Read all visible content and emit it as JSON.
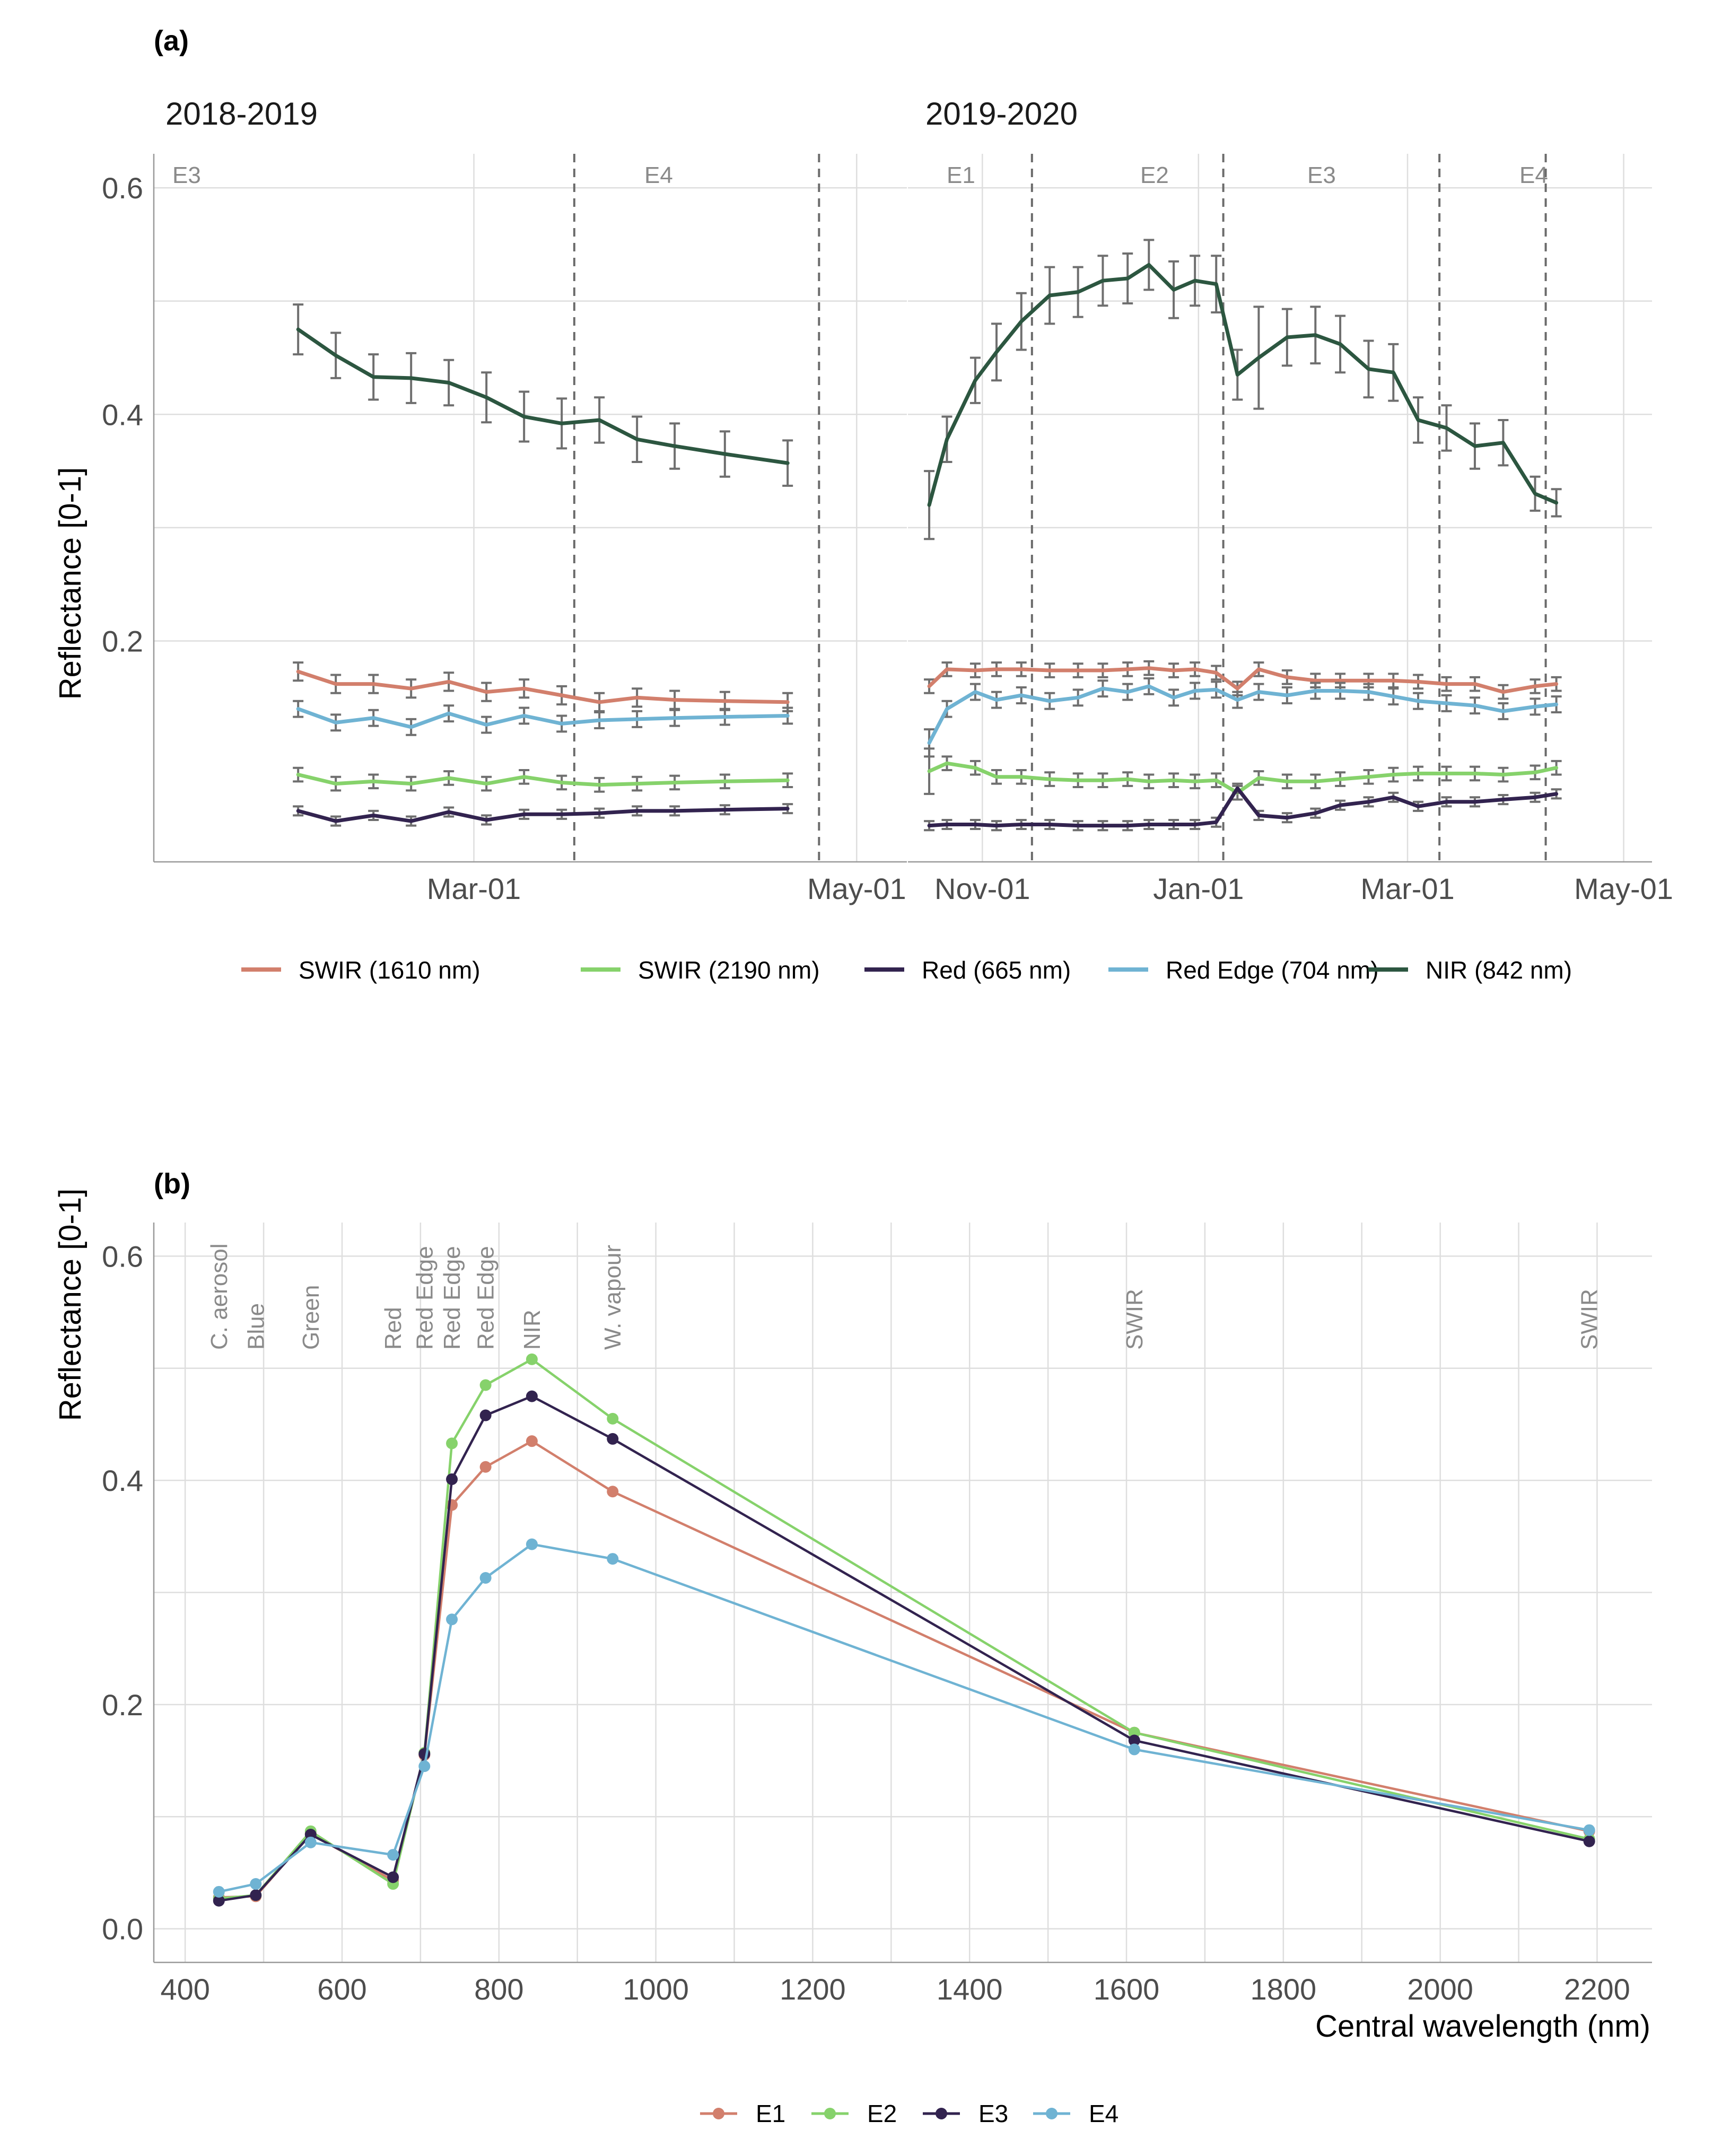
{
  "panel_a": {
    "title": "(a)",
    "ylabel": "Reflectance [0-1]",
    "yticks": [
      "0.2",
      "0.4",
      "0.6"
    ],
    "colors": {
      "swir1610": "#d27f6c",
      "swir2190": "#86d26b",
      "red": "#32234f",
      "rededge": "#6fb3d3",
      "nir": "#2c5640"
    },
    "legend": [
      "SWIR (1610 nm)",
      "SWIR (2190 nm)",
      "Red (665 nm)",
      "Red Edge (704 nm)",
      "NIR (842 nm)"
    ]
  },
  "panel_b": {
    "title": "(b)",
    "ylabel": "Reflectance [0-1]",
    "xlabel": "Central wavelength (nm)",
    "yticks": [
      "0.0",
      "0.2",
      "0.4",
      "0.6"
    ],
    "xticks": [
      "400",
      "600",
      "800",
      "1000",
      "1200",
      "1400",
      "1600",
      "1800",
      "2000",
      "2200"
    ],
    "legend": [
      "E1",
      "E2",
      "E3",
      "E4"
    ],
    "colors": {
      "E1": "#d27f6c",
      "E2": "#86d26b",
      "E3": "#32234f",
      "E4": "#6fb3d3"
    }
  },
  "chart_data": [
    {
      "type": "line",
      "title": "(a)",
      "facets": [
        {
          "name": "2018-2019",
          "xticks": [
            "Mar-01",
            "May-01"
          ],
          "events": [
            {
              "label": "E3",
              "boundary": false
            },
            {
              "label": "E4",
              "boundary": true
            }
          ],
          "dates": [
            "Feb-01",
            "Feb-07",
            "Feb-13",
            "Feb-19",
            "Feb-25",
            "Mar-03",
            "Mar-09",
            "Mar-15",
            "Mar-21",
            "Mar-27",
            "Apr-02",
            "Apr-10",
            "Apr-20"
          ],
          "series": [
            {
              "name": "NIR (842 nm)",
              "values": [
                0.475,
                0.452,
                0.433,
                0.432,
                0.428,
                0.415,
                0.398,
                0.392,
                0.395,
                0.378,
                0.372,
                0.365,
                0.357
              ],
              "err": [
                0.022,
                0.02,
                0.02,
                0.022,
                0.02,
                0.022,
                0.022,
                0.022,
                0.02,
                0.02,
                0.02,
                0.02,
                0.02
              ]
            },
            {
              "name": "SWIR (1610 nm)",
              "values": [
                0.173,
                0.162,
                0.162,
                0.158,
                0.164,
                0.155,
                0.158,
                0.152,
                0.146,
                0.15,
                0.148,
                0.147,
                0.146
              ],
              "err": [
                0.008,
                0.008,
                0.008,
                0.008,
                0.008,
                0.008,
                0.008,
                0.008,
                0.008,
                0.008,
                0.008,
                0.008,
                0.008
              ]
            },
            {
              "name": "Red Edge (704 nm)",
              "values": [
                0.14,
                0.128,
                0.132,
                0.124,
                0.136,
                0.126,
                0.134,
                0.127,
                0.13,
                0.131,
                0.132,
                0.133,
                0.134
              ],
              "err": [
                0.007,
                0.007,
                0.007,
                0.007,
                0.007,
                0.007,
                0.007,
                0.007,
                0.007,
                0.007,
                0.007,
                0.007,
                0.007
              ]
            },
            {
              "name": "SWIR (2190 nm)",
              "values": [
                0.082,
                0.074,
                0.076,
                0.074,
                0.079,
                0.074,
                0.08,
                0.075,
                0.073,
                0.074,
                0.075,
                0.076,
                0.077
              ],
              "err": [
                0.006,
                0.006,
                0.006,
                0.006,
                0.006,
                0.006,
                0.006,
                0.006,
                0.006,
                0.006,
                0.006,
                0.006,
                0.006
              ]
            },
            {
              "name": "Red (665 nm)",
              "values": [
                0.05,
                0.041,
                0.046,
                0.041,
                0.049,
                0.042,
                0.047,
                0.047,
                0.048,
                0.05,
                0.05,
                0.051,
                0.052
              ],
              "err": [
                0.004,
                0.004,
                0.004,
                0.004,
                0.004,
                0.004,
                0.004,
                0.004,
                0.004,
                0.004,
                0.004,
                0.004,
                0.004
              ]
            }
          ]
        },
        {
          "name": "2019-2020",
          "xticks": [
            "Nov-01",
            "Jan-01",
            "Mar-01",
            "May-01"
          ],
          "events": [
            {
              "label": "E1",
              "boundary": false
            },
            {
              "label": "E2",
              "boundary": true
            },
            {
              "label": "E3",
              "boundary": true
            },
            {
              "label": "E4",
              "boundary": true
            }
          ],
          "dates": [
            "Oct-17",
            "Oct-22",
            "Oct-30",
            "Nov-05",
            "Nov-12",
            "Nov-20",
            "Nov-28",
            "Dec-05",
            "Dec-12",
            "Dec-18",
            "Dec-25",
            "Dec-31",
            "Jan-06",
            "Jan-12",
            "Jan-18",
            "Jan-26",
            "Feb-03",
            "Feb-10",
            "Feb-18",
            "Feb-25",
            "Mar-04",
            "Mar-12",
            "Mar-20",
            "Mar-28",
            "Apr-06",
            "Apr-12"
          ],
          "series": [
            {
              "name": "NIR (842 nm)",
              "values": [
                0.32,
                0.378,
                0.43,
                0.455,
                0.482,
                0.505,
                0.508,
                0.518,
                0.52,
                0.532,
                0.51,
                0.518,
                0.515,
                0.435,
                0.45,
                0.468,
                0.47,
                0.462,
                0.44,
                0.437,
                0.395,
                0.388,
                0.372,
                0.375,
                0.33,
                0.322
              ],
              "err": [
                0.03,
                0.02,
                0.02,
                0.025,
                0.025,
                0.025,
                0.022,
                0.022,
                0.022,
                0.022,
                0.025,
                0.022,
                0.025,
                0.022,
                0.045,
                0.025,
                0.025,
                0.025,
                0.025,
                0.025,
                0.02,
                0.02,
                0.02,
                0.02,
                0.015,
                0.012
              ]
            },
            {
              "name": "SWIR (1610 nm)",
              "values": [
                0.16,
                0.175,
                0.174,
                0.175,
                0.175,
                0.174,
                0.174,
                0.174,
                0.175,
                0.176,
                0.174,
                0.175,
                0.172,
                0.158,
                0.175,
                0.168,
                0.165,
                0.165,
                0.165,
                0.165,
                0.164,
                0.162,
                0.162,
                0.155,
                0.16,
                0.162
              ],
              "err": [
                0.006,
                0.006,
                0.006,
                0.006,
                0.006,
                0.006,
                0.006,
                0.006,
                0.006,
                0.006,
                0.006,
                0.006,
                0.006,
                0.006,
                0.006,
                0.006,
                0.006,
                0.006,
                0.006,
                0.006,
                0.006,
                0.006,
                0.006,
                0.006,
                0.006,
                0.006
              ]
            },
            {
              "name": "Red Edge (704 nm)",
              "values": [
                0.11,
                0.14,
                0.155,
                0.148,
                0.152,
                0.147,
                0.15,
                0.158,
                0.155,
                0.16,
                0.15,
                0.156,
                0.157,
                0.148,
                0.155,
                0.152,
                0.156,
                0.156,
                0.155,
                0.151,
                0.147,
                0.145,
                0.143,
                0.138,
                0.142,
                0.144
              ],
              "err": [
                0.012,
                0.007,
                0.007,
                0.007,
                0.007,
                0.007,
                0.007,
                0.007,
                0.007,
                0.007,
                0.007,
                0.007,
                0.007,
                0.007,
                0.007,
                0.007,
                0.007,
                0.007,
                0.007,
                0.007,
                0.007,
                0.007,
                0.007,
                0.007,
                0.007,
                0.007
              ]
            },
            {
              "name": "SWIR (2190 nm)",
              "values": [
                0.085,
                0.092,
                0.088,
                0.08,
                0.08,
                0.078,
                0.077,
                0.077,
                0.078,
                0.076,
                0.077,
                0.076,
                0.077,
                0.066,
                0.079,
                0.076,
                0.076,
                0.078,
                0.08,
                0.082,
                0.083,
                0.083,
                0.083,
                0.082,
                0.084,
                0.088
              ],
              "err": [
                0.02,
                0.006,
                0.006,
                0.006,
                0.006,
                0.006,
                0.006,
                0.006,
                0.006,
                0.006,
                0.006,
                0.006,
                0.006,
                0.006,
                0.006,
                0.006,
                0.006,
                0.006,
                0.006,
                0.006,
                0.006,
                0.006,
                0.006,
                0.006,
                0.006,
                0.006
              ]
            },
            {
              "name": "Red (665 nm)",
              "values": [
                0.037,
                0.038,
                0.038,
                0.037,
                0.038,
                0.038,
                0.037,
                0.037,
                0.037,
                0.038,
                0.038,
                0.038,
                0.04,
                0.07,
                0.046,
                0.044,
                0.048,
                0.055,
                0.058,
                0.062,
                0.054,
                0.058,
                0.058,
                0.06,
                0.062,
                0.065
              ],
              "err": [
                0.004,
                0.004,
                0.004,
                0.004,
                0.004,
                0.004,
                0.004,
                0.004,
                0.004,
                0.004,
                0.004,
                0.004,
                0.004,
                0.004,
                0.004,
                0.004,
                0.004,
                0.004,
                0.004,
                0.004,
                0.004,
                0.004,
                0.004,
                0.004,
                0.004,
                0.004
              ]
            }
          ]
        }
      ],
      "ylabel": "Reflectance [0-1]",
      "ylim": [
        0.005,
        0.63
      ]
    },
    {
      "type": "line",
      "title": "(b)",
      "xlabel": "Central wavelength (nm)",
      "ylabel": "Reflectance [0-1]",
      "xlim": [
        360,
        2270
      ],
      "ylim": [
        -0.03,
        0.63
      ],
      "x": [
        443,
        490,
        560,
        665,
        705,
        740,
        783,
        842,
        945,
        1610,
        2190
      ],
      "band_labels": [
        {
          "label": "C. aerosol",
          "x": 443
        },
        {
          "label": "Blue",
          "x": 490
        },
        {
          "label": "Green",
          "x": 560
        },
        {
          "label": "Red",
          "x": 665
        },
        {
          "label": "Red Edge",
          "x": 705
        },
        {
          "label": "Red Edge",
          "x": 740
        },
        {
          "label": "Red Edge",
          "x": 783
        },
        {
          "label": "NIR",
          "x": 842
        },
        {
          "label": "W. vapour",
          "x": 945
        },
        {
          "label": "SWIR",
          "x": 1610
        },
        {
          "label": "SWIR",
          "x": 2190
        }
      ],
      "series": [
        {
          "name": "E1",
          "values": [
            0.028,
            0.029,
            0.085,
            0.043,
            0.155,
            0.378,
            0.412,
            0.435,
            0.39,
            0.175,
            0.087
          ]
        },
        {
          "name": "E2",
          "values": [
            0.027,
            0.03,
            0.087,
            0.04,
            0.157,
            0.433,
            0.485,
            0.508,
            0.455,
            0.175,
            0.08
          ]
        },
        {
          "name": "E3",
          "values": [
            0.025,
            0.03,
            0.084,
            0.046,
            0.156,
            0.401,
            0.458,
            0.475,
            0.437,
            0.168,
            0.078
          ]
        },
        {
          "name": "E4",
          "values": [
            0.033,
            0.04,
            0.077,
            0.066,
            0.145,
            0.276,
            0.313,
            0.343,
            0.33,
            0.16,
            0.088
          ]
        }
      ]
    }
  ]
}
